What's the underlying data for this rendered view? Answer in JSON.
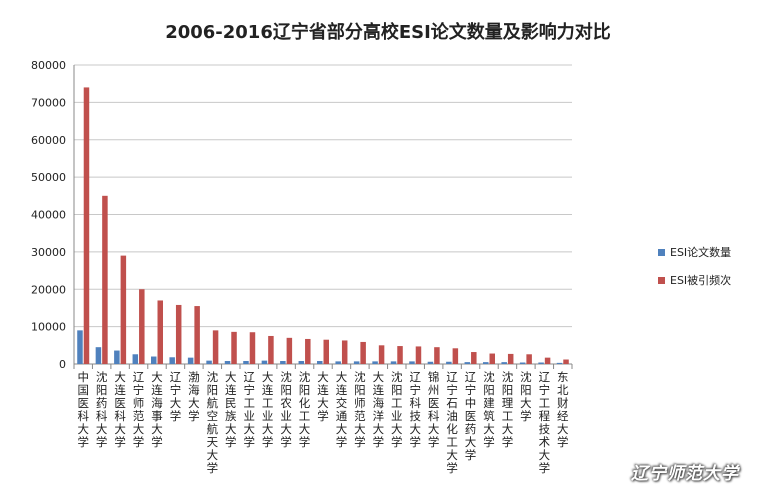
{
  "watermark": "辽宁师范大学",
  "chart_data": {
    "type": "bar",
    "title": "2006-2016辽宁省部分高校ESI论文数量及影响力对比",
    "xlabel": "",
    "ylabel": "",
    "ylim": [
      0,
      80000
    ],
    "yticks": [
      0,
      10000,
      20000,
      30000,
      40000,
      50000,
      60000,
      70000,
      80000
    ],
    "grid": true,
    "legend_position": "right",
    "categories": [
      "中国医科大学",
      "沈阳药科大学",
      "大连医科大学",
      "辽宁师范大学",
      "大连海事大学",
      "辽宁大学",
      "渤海大学",
      "沈阳航空航天大学",
      "大连民族大学",
      "辽宁工业大学",
      "大连工业大学",
      "沈阳农业大学",
      "沈阳化工大学",
      "大连大学",
      "大连交通大学",
      "沈阳师范大学",
      "大连海洋大学",
      "沈阳工业大学",
      "辽宁科技大学",
      "锦州医科大学",
      "辽宁石油化工大学",
      "辽宁中医药大学",
      "沈阳建筑大学",
      "沈阳理工大学",
      "沈阳大学",
      "辽宁工程技术大学",
      "东北财经大学"
    ],
    "series": [
      {
        "name": "ESI论文数量",
        "color": "#4f81bd",
        "values": [
          9000,
          4500,
          3600,
          2600,
          2000,
          1800,
          1700,
          900,
          800,
          800,
          900,
          800,
          800,
          800,
          700,
          700,
          700,
          700,
          700,
          600,
          600,
          500,
          500,
          500,
          400,
          400,
          300
        ]
      },
      {
        "name": "ESI被引频次",
        "color": "#c0504d",
        "values": [
          74000,
          45000,
          29000,
          20000,
          17000,
          15800,
          15500,
          9000,
          8600,
          8500,
          7500,
          7000,
          6700,
          6500,
          6300,
          5900,
          5000,
          4800,
          4700,
          4500,
          4200,
          3200,
          2800,
          2700,
          2600,
          1700,
          1200
        ]
      }
    ]
  }
}
